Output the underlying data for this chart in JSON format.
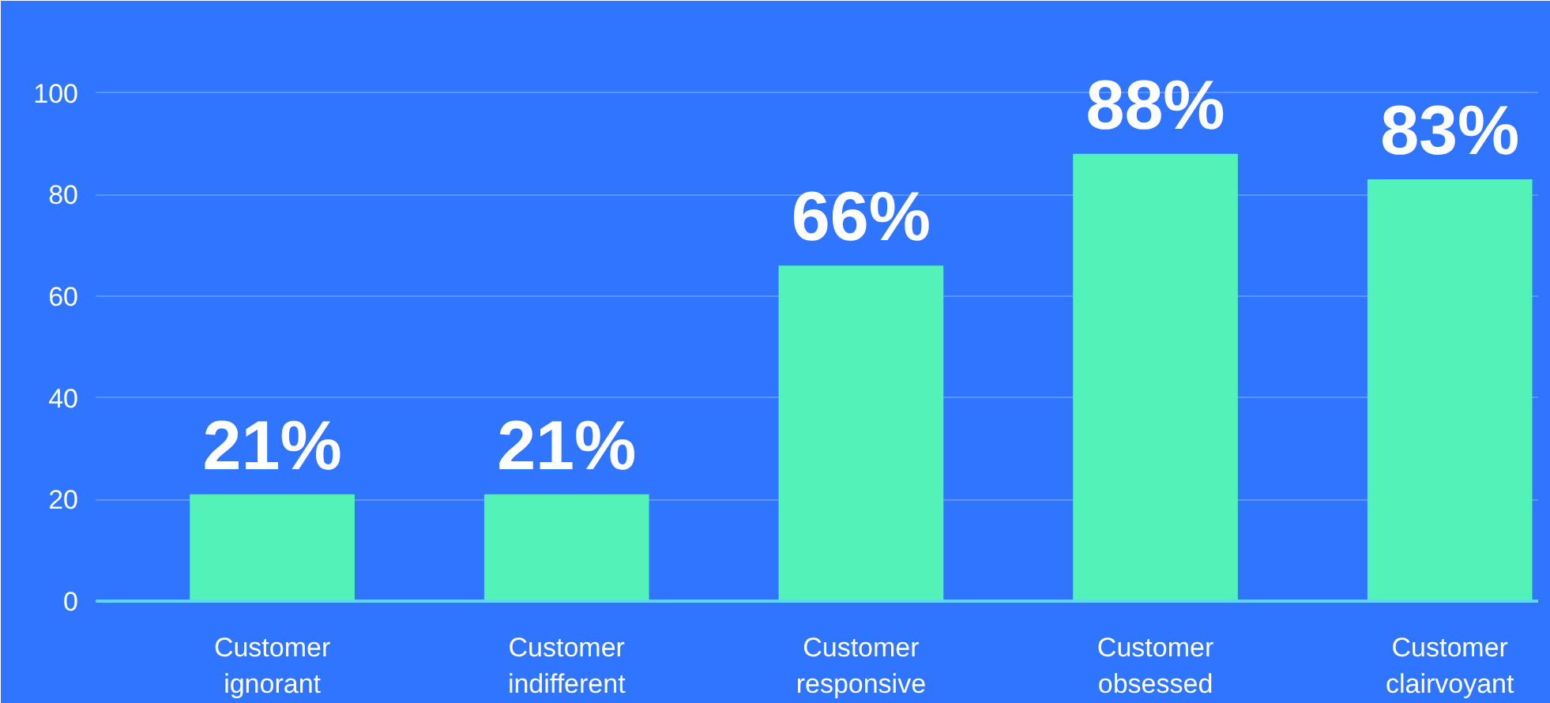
{
  "chart_data": {
    "type": "bar",
    "categories": [
      "Customer ignorant",
      "Customer indifferent",
      "Customer responsive",
      "Customer obsessed",
      "Customer clairvoyant"
    ],
    "values": [
      21,
      21,
      66,
      88,
      83
    ],
    "color": "#52f2b8",
    "value_labels": [
      "21%",
      "21%",
      "66%",
      "88%",
      "83%"
    ],
    "ylim": [
      0,
      115
    ],
    "yticks": [
      0,
      20,
      40,
      60,
      80,
      100
    ],
    "grid": "y"
  }
}
